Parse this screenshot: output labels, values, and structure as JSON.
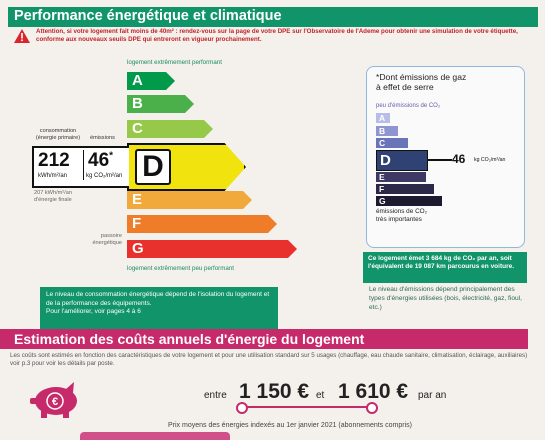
{
  "section1": {
    "title": "Performance énergétique et climatique",
    "attention": "Attention, si votre logement fait moins de 40m² : rendez-vous sur la page de votre DPE sur l'Observatoire de l'Ademe pour obtenir une simulation de votre étiquette, conforme aux nouveaux seuils DPE qui entreront en vigueur prochainement."
  },
  "energy_label": {
    "top_label": "logement extrêmement performant",
    "bottom_label": "logement extrêmement peu performant",
    "grades": [
      "A",
      "B",
      "C",
      "D",
      "E",
      "F",
      "G"
    ],
    "colors": [
      "#009a4a",
      "#4bb04a",
      "#96c94a",
      "#f1e40e",
      "#f2a93b",
      "#ee7c28",
      "#e8302c"
    ],
    "current_grade": "D",
    "consumption_caption": "consommation\n(énergie primaire)",
    "emissions_caption": "émissions",
    "consumption_value": "212",
    "consumption_unit": "kWh/m²/an",
    "emissions_value": "46",
    "emissions_star": "*",
    "emissions_unit": "kg CO₂/m²/an",
    "final_energy_caption": "207 kWh/m²/an\nd'énergie finale",
    "passoire_caption": "passoire\nénergétique",
    "info_text": "Le niveau de consommation énergétique dépend de l'isolation du logement et de la performance des équipements.\nPour l'améliorer, voir pages 4 à 6"
  },
  "ges_label": {
    "title": "*Dont émissions de gaz\nà effet de serre",
    "low_label": "peu d'émissions de CO₂",
    "high_label": "émissions de CO₂\ntrès importantes",
    "grades": [
      "A",
      "B",
      "C",
      "D",
      "E",
      "F",
      "G"
    ],
    "colors": [
      "#b8bde8",
      "#8e95d0",
      "#6a74b8",
      "#2f4273",
      "#3e3864",
      "#2c2848",
      "#1d1a30"
    ],
    "current_grade": "D",
    "value": "46",
    "unit": "kg CO₂/m²/an",
    "highlight_text": "Ce logement émet 3 684 kg de CO₂ par an, soit l'équivalent de 19 087 km parcourus en voiture.",
    "detail_text": "Le niveau d'émissions dépend principalement des types d'énergies utilisées (bois, électricité, gaz, fioul, etc.)"
  },
  "section2": {
    "title": "Estimation des coûts annuels d'énergie du logement",
    "description": "Les coûts sont estimés en fonction des caractéristiques de votre logement et pour une utilisation standard sur 5 usages (chauffage, eau chaude sanitaire, climatisation, éclairage, auxiliaires) voir p.3 pour voir les détails par poste.",
    "entre": "entre",
    "cost_low": "1 150 €",
    "et": "et",
    "cost_high": "1 610 €",
    "par_an": "par an",
    "prix_note": "Prix moyens des énergies indexés au 1er janvier 2021 (abonnements compris)"
  }
}
